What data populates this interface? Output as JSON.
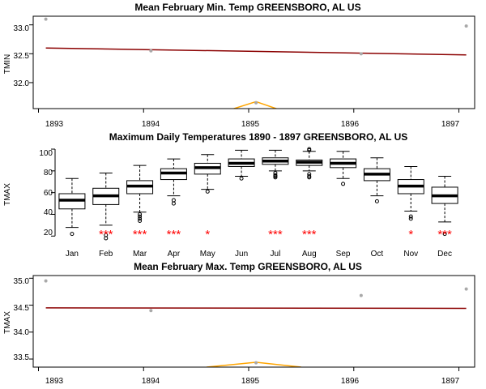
{
  "chart_data": [
    {
      "type": "scatter",
      "title": "Mean February Min. Temp GREENSBORO, AL US",
      "ylabel": "TMIN",
      "xlim": [
        1892.95,
        1897.15
      ],
      "ylim": [
        31.55,
        33.15
      ],
      "xticks": [
        "1893",
        "1894",
        "1895",
        "1896",
        "1897"
      ],
      "yticks": [
        "32.0",
        "32.5",
        "33.0"
      ],
      "points": [
        {
          "x": 1893.07,
          "y": 33.1
        },
        {
          "x": 1894.07,
          "y": 32.55
        },
        {
          "x": 1895.07,
          "y": 31.65
        },
        {
          "x": 1896.07,
          "y": 32.5
        },
        {
          "x": 1897.07,
          "y": 32.98
        }
      ],
      "trend": {
        "x": [
          1893.07,
          1897.07
        ],
        "y": [
          32.6,
          32.48
        ]
      },
      "highlight": {
        "x": [
          1894.6,
          1895.07,
          1895.5
        ],
        "y": [
          31.4,
          31.67,
          31.4
        ]
      },
      "colors": {
        "points": "#a9a9a9",
        "trend": "#8b0000",
        "highlight": "#ffa500"
      }
    },
    {
      "type": "box",
      "title": "Maximum Daily Temperatures 1890 - 1897 GREENSBORO, AL US",
      "ylabel": "TMAX",
      "ylim": [
        15,
        103
      ],
      "yticks": [
        "20",
        "40",
        "60",
        "80",
        "100"
      ],
      "categories": [
        "Jan",
        "Feb",
        "Mar",
        "Apr",
        "May",
        "Jun",
        "Jul",
        "Aug",
        "Sep",
        "Oct",
        "Nov",
        "Dec"
      ],
      "boxes": [
        {
          "min": 28,
          "q1": 45,
          "median": 53,
          "q3": 59,
          "max": 73,
          "outliers": [
            22
          ]
        },
        {
          "min": 30,
          "q1": 49,
          "median": 57,
          "q3": 64,
          "max": 78,
          "outliers": [
            21,
            18
          ]
        },
        {
          "min": 42,
          "q1": 59,
          "median": 66,
          "q3": 71,
          "max": 85,
          "outliers": [
            40,
            38,
            36,
            34
          ]
        },
        {
          "min": 57,
          "q1": 72,
          "median": 78,
          "q3": 82,
          "max": 91,
          "outliers": [
            53,
            50
          ]
        },
        {
          "min": 63,
          "q1": 77,
          "median": 83,
          "q3": 87,
          "max": 95,
          "outliers": [
            61
          ]
        },
        {
          "min": 75,
          "q1": 84,
          "median": 87,
          "q3": 91,
          "max": 99,
          "outliers": [
            73
          ]
        },
        {
          "min": 80,
          "q1": 86,
          "median": 89,
          "q3": 92,
          "max": 99,
          "outliers": [
            78,
            76,
            75,
            74
          ]
        },
        {
          "min": 80,
          "q1": 85,
          "median": 88,
          "q3": 90,
          "max": 98,
          "outliers": [
            77,
            75,
            74,
            99,
            100
          ]
        },
        {
          "min": 73,
          "q1": 83,
          "median": 87,
          "q3": 91,
          "max": 98,
          "outliers": [
            68
          ]
        },
        {
          "min": 57,
          "q1": 71,
          "median": 77,
          "q3": 82,
          "max": 92,
          "outliers": [
            52
          ]
        },
        {
          "min": 43,
          "q1": 59,
          "median": 66,
          "q3": 72,
          "max": 84,
          "outliers": [
            38,
            36
          ]
        },
        {
          "min": 33,
          "q1": 50,
          "median": 57,
          "q3": 65,
          "max": 75,
          "outliers": [
            22
          ]
        }
      ],
      "stars": [
        "",
        "***",
        "***",
        "***",
        "*",
        "",
        "***",
        "***",
        "",
        "",
        "*",
        "***"
      ],
      "colors": {
        "stars": "#ff0000"
      }
    },
    {
      "type": "scatter",
      "title": "Mean February Max. Temp GREENSBORO, AL US",
      "ylabel": "TMAX",
      "xlim": [
        1892.95,
        1897.15
      ],
      "ylim": [
        33.35,
        35.05
      ],
      "xticks": [
        "1893",
        "1894",
        "1895",
        "1896",
        "1897"
      ],
      "yticks": [
        "33.5",
        "34.0",
        "34.5",
        "35.0"
      ],
      "points": [
        {
          "x": 1893.07,
          "y": 34.95
        },
        {
          "x": 1894.07,
          "y": 34.4
        },
        {
          "x": 1895.07,
          "y": 33.43
        },
        {
          "x": 1896.07,
          "y": 34.68
        },
        {
          "x": 1897.07,
          "y": 34.8
        }
      ],
      "trend": {
        "x": [
          1893.07,
          1897.07
        ],
        "y": [
          34.45,
          34.44
        ]
      },
      "highlight": {
        "x": [
          1894.6,
          1895.07,
          1895.5
        ],
        "y": [
          33.35,
          33.44,
          33.35
        ]
      },
      "colors": {
        "points": "#a9a9a9",
        "trend": "#8b0000",
        "highlight": "#ffa500"
      }
    }
  ]
}
